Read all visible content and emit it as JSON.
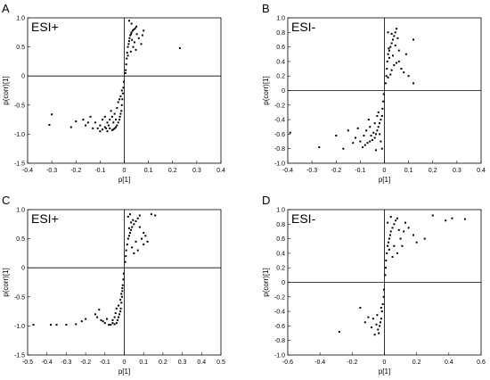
{
  "figure": {
    "panels": [
      {
        "letter": "A",
        "annotation": "ESI+",
        "xlabel": "p[1]",
        "ylabel": "p(corr)[1]"
      },
      {
        "letter": "B",
        "annotation": "ESI-",
        "xlabel": "p[1]",
        "ylabel": "p(corr)[1]"
      },
      {
        "letter": "C",
        "annotation": "ESI+",
        "xlabel": "p[1]",
        "ylabel": "p(corr)[1]"
      },
      {
        "letter": "D",
        "annotation": "ESI-",
        "xlabel": "p[1]",
        "ylabel": "p(corr)[1]"
      }
    ]
  },
  "chart_data": [
    {
      "type": "scatter",
      "panel": "A",
      "annotation": "ESI+",
      "xlabel": "p[1]",
      "ylabel": "p(corr)[1]",
      "xlim": [
        -0.4,
        0.4
      ],
      "ylim": [
        -1.5,
        1.0
      ],
      "xticks": [
        -0.4,
        -0.3,
        -0.2,
        -0.1,
        0,
        0.1,
        0.2,
        0.3,
        0.4
      ],
      "yticks": [
        -1.5,
        -1.0,
        -0.5,
        0,
        0.5,
        1.0
      ],
      "xtick_labels": [
        "-0.4",
        "-0.3",
        "-0.2",
        "-0.1",
        "0",
        "0.1",
        "0.2",
        "0.3",
        "0.4"
      ],
      "ytick_labels": [
        "-1.5",
        "-1.0",
        "-0.5",
        "0",
        "0.5",
        "1.0"
      ],
      "grid": false,
      "reference_lines": {
        "x": 0,
        "y": 0
      },
      "points": [
        [
          0.01,
          0.3
        ],
        [
          0.012,
          0.4
        ],
        [
          0.015,
          0.5
        ],
        [
          0.018,
          0.55
        ],
        [
          0.02,
          0.6
        ],
        [
          0.022,
          0.65
        ],
        [
          0.025,
          0.7
        ],
        [
          0.028,
          0.72
        ],
        [
          0.03,
          0.75
        ],
        [
          0.035,
          0.78
        ],
        [
          0.04,
          0.8
        ],
        [
          0.045,
          0.82
        ],
        [
          0.05,
          0.85
        ],
        [
          0.03,
          0.9
        ],
        [
          0.02,
          0.95
        ],
        [
          0.06,
          0.65
        ],
        [
          0.07,
          0.55
        ],
        [
          0.075,
          0.7
        ],
        [
          0.08,
          0.78
        ],
        [
          0.008,
          0.2
        ],
        [
          0.006,
          0.1
        ],
        [
          0.005,
          0.05
        ],
        [
          0.015,
          0.35
        ],
        [
          0.032,
          0.62
        ],
        [
          0.042,
          0.58
        ],
        [
          0.052,
          0.72
        ],
        [
          0.037,
          0.5
        ],
        [
          0.048,
          0.45
        ],
        [
          0.027,
          0.42
        ],
        [
          0.23,
          0.48
        ],
        [
          -0.002,
          -0.1
        ],
        [
          -0.004,
          -0.2
        ],
        [
          -0.006,
          -0.3
        ],
        [
          -0.008,
          -0.4
        ],
        [
          -0.01,
          -0.5
        ],
        [
          -0.012,
          -0.6
        ],
        [
          -0.015,
          -0.65
        ],
        [
          -0.018,
          -0.7
        ],
        [
          -0.02,
          -0.75
        ],
        [
          -0.025,
          -0.8
        ],
        [
          -0.03,
          -0.85
        ],
        [
          -0.035,
          -0.88
        ],
        [
          -0.04,
          -0.9
        ],
        [
          -0.045,
          -0.92
        ],
        [
          -0.05,
          -0.93
        ],
        [
          -0.06,
          -0.9
        ],
        [
          -0.07,
          -0.95
        ],
        [
          -0.08,
          -0.88
        ],
        [
          -0.09,
          -0.92
        ],
        [
          -0.1,
          -0.85
        ],
        [
          -0.12,
          -0.8
        ],
        [
          -0.13,
          -0.9
        ],
        [
          -0.15,
          -0.8
        ],
        [
          -0.17,
          -0.75
        ],
        [
          -0.2,
          -0.78
        ],
        [
          -0.22,
          -0.88
        ],
        [
          -0.3,
          -0.66
        ],
        [
          -0.31,
          -0.84
        ],
        [
          -0.05,
          -0.7
        ],
        [
          -0.06,
          -0.75
        ],
        [
          -0.04,
          -0.65
        ],
        [
          -0.03,
          -0.55
        ],
        [
          -0.025,
          -0.45
        ],
        [
          -0.02,
          -0.4
        ],
        [
          -0.015,
          -0.35
        ],
        [
          -0.01,
          -0.25
        ],
        [
          -0.07,
          -0.8
        ],
        [
          -0.08,
          -0.7
        ],
        [
          -0.09,
          -0.75
        ],
        [
          -0.11,
          -0.9
        ],
        [
          -0.14,
          -0.7
        ],
        [
          -0.16,
          -0.85
        ],
        [
          -0.1,
          -0.95
        ],
        [
          -0.055,
          -0.6
        ],
        [
          -0.035,
          -0.75
        ],
        [
          -0.045,
          -0.8
        ],
        [
          -0.065,
          -0.85
        ],
        [
          -0.075,
          -0.9
        ]
      ]
    },
    {
      "type": "scatter",
      "panel": "B",
      "annotation": "ESI-",
      "xlabel": "p[1]",
      "ylabel": "p(corr)[1]",
      "xlim": [
        -0.4,
        0.4
      ],
      "ylim": [
        -1.0,
        1.0
      ],
      "xticks": [
        -0.4,
        -0.3,
        -0.2,
        -0.1,
        0,
        0.1,
        0.2,
        0.3,
        0.4
      ],
      "yticks": [
        -1.0,
        -0.8,
        -0.6,
        -0.4,
        -0.2,
        0,
        0.2,
        0.4,
        0.6,
        0.8,
        1.0
      ],
      "xtick_labels": [
        "-0.4",
        "-0.3",
        "-0.2",
        "-0.1",
        "0",
        "0.1",
        "0.2",
        "0.3",
        "0.4"
      ],
      "ytick_labels": [
        "-1.0",
        "-0.8",
        "-0.6",
        "-0.4",
        "-0.2",
        "0",
        "0.2",
        "0.4",
        "0.6",
        "0.8",
        "1.0"
      ],
      "grid": false,
      "reference_lines": {
        "x": 0,
        "y": 0
      },
      "points": [
        [
          0.005,
          0.1
        ],
        [
          0.008,
          0.2
        ],
        [
          0.01,
          0.3
        ],
        [
          0.012,
          0.4
        ],
        [
          0.015,
          0.5
        ],
        [
          0.02,
          0.55
        ],
        [
          0.025,
          0.6
        ],
        [
          0.03,
          0.65
        ],
        [
          0.035,
          0.7
        ],
        [
          0.04,
          0.75
        ],
        [
          0.045,
          0.8
        ],
        [
          0.05,
          0.85
        ],
        [
          0.03,
          0.78
        ],
        [
          0.02,
          0.45
        ],
        [
          0.04,
          0.35
        ],
        [
          0.06,
          0.4
        ],
        [
          0.07,
          0.3
        ],
        [
          0.08,
          0.25
        ],
        [
          0.1,
          0.2
        ],
        [
          0.12,
          0.1
        ],
        [
          0.09,
          0.5
        ],
        [
          0.06,
          0.55
        ],
        [
          0.05,
          0.38
        ],
        [
          0.03,
          0.28
        ],
        [
          0.015,
          0.18
        ],
        [
          0.025,
          0.22
        ],
        [
          0.035,
          0.48
        ],
        [
          0.045,
          0.62
        ],
        [
          0.055,
          0.72
        ],
        [
          0.12,
          0.7
        ],
        [
          0.015,
          0.8
        ],
        [
          0.018,
          0.58
        ],
        [
          -0.003,
          -0.05
        ],
        [
          -0.005,
          -0.15
        ],
        [
          -0.008,
          -0.25
        ],
        [
          -0.01,
          -0.35
        ],
        [
          -0.015,
          -0.4
        ],
        [
          -0.02,
          -0.45
        ],
        [
          -0.025,
          -0.5
        ],
        [
          -0.03,
          -0.55
        ],
        [
          -0.035,
          -0.6
        ],
        [
          -0.04,
          -0.65
        ],
        [
          -0.05,
          -0.68
        ],
        [
          -0.06,
          -0.7
        ],
        [
          -0.07,
          -0.72
        ],
        [
          -0.08,
          -0.75
        ],
        [
          -0.09,
          -0.78
        ],
        [
          -0.1,
          -0.7
        ],
        [
          -0.12,
          -0.65
        ],
        [
          -0.15,
          -0.55
        ],
        [
          -0.17,
          -0.8
        ],
        [
          -0.2,
          -0.62
        ],
        [
          -0.27,
          -0.78
        ],
        [
          -0.39,
          -0.58
        ],
        [
          -0.06,
          -0.5
        ],
        [
          -0.04,
          -0.45
        ],
        [
          -0.03,
          -0.35
        ],
        [
          -0.025,
          -0.3
        ],
        [
          -0.045,
          -0.58
        ],
        [
          -0.055,
          -0.62
        ],
        [
          -0.065,
          -0.4
        ],
        [
          -0.075,
          -0.55
        ],
        [
          -0.085,
          -0.62
        ],
        [
          -0.11,
          -0.52
        ],
        [
          -0.13,
          -0.72
        ],
        [
          -0.02,
          -0.6
        ],
        [
          -0.015,
          -0.7
        ],
        [
          -0.01,
          -0.8
        ],
        [
          -0.035,
          -0.82
        ]
      ]
    },
    {
      "type": "scatter",
      "panel": "C",
      "annotation": "ESI+",
      "xlabel": "p[1]",
      "ylabel": "p(corr)[1]",
      "xlim": [
        -0.5,
        0.5
      ],
      "ylim": [
        -1.5,
        1.0
      ],
      "xticks": [
        -0.5,
        -0.4,
        -0.3,
        -0.2,
        -0.1,
        0,
        0.1,
        0.2,
        0.3,
        0.4,
        0.5
      ],
      "yticks": [
        -1.5,
        -1.0,
        -0.5,
        0,
        0.5,
        1.0
      ],
      "xtick_labels": [
        "-0.5",
        "-0.4",
        "-0.3",
        "-0.2",
        "-0.1",
        "0",
        "0.1",
        "0.2",
        "0.3",
        "0.4",
        "0.5"
      ],
      "ytick_labels": [
        "-1.5",
        "-1.0",
        "-0.5",
        "0",
        "0.5",
        "1.0"
      ],
      "grid": false,
      "reference_lines": {
        "x": 0,
        "y": 0
      },
      "points": [
        [
          0.005,
          0.1
        ],
        [
          0.008,
          0.2
        ],
        [
          0.01,
          0.3
        ],
        [
          0.015,
          0.4
        ],
        [
          0.02,
          0.5
        ],
        [
          0.025,
          0.55
        ],
        [
          0.03,
          0.6
        ],
        [
          0.035,
          0.65
        ],
        [
          0.04,
          0.7
        ],
        [
          0.05,
          0.75
        ],
        [
          0.06,
          0.8
        ],
        [
          0.07,
          0.85
        ],
        [
          0.08,
          0.9
        ],
        [
          0.03,
          0.92
        ],
        [
          0.02,
          0.88
        ],
        [
          0.09,
          0.5
        ],
        [
          0.1,
          0.4
        ],
        [
          0.12,
          0.45
        ],
        [
          0.1,
          0.6
        ],
        [
          0.14,
          0.92
        ],
        [
          0.16,
          0.9
        ],
        [
          0.04,
          0.35
        ],
        [
          0.06,
          0.45
        ],
        [
          0.07,
          0.3
        ],
        [
          0.05,
          0.25
        ],
        [
          0.08,
          0.7
        ],
        [
          0.11,
          0.55
        ],
        [
          0.045,
          0.82
        ],
        [
          0.035,
          0.78
        ],
        [
          0.025,
          0.68
        ],
        [
          -0.003,
          -0.1
        ],
        [
          -0.005,
          -0.2
        ],
        [
          -0.008,
          -0.3
        ],
        [
          -0.01,
          -0.4
        ],
        [
          -0.012,
          -0.5
        ],
        [
          -0.015,
          -0.6
        ],
        [
          -0.018,
          -0.7
        ],
        [
          -0.02,
          -0.75
        ],
        [
          -0.025,
          -0.8
        ],
        [
          -0.03,
          -0.85
        ],
        [
          -0.035,
          -0.9
        ],
        [
          -0.04,
          -0.95
        ],
        [
          -0.05,
          -0.97
        ],
        [
          -0.06,
          -0.95
        ],
        [
          -0.07,
          -0.98
        ],
        [
          -0.08,
          -0.98
        ],
        [
          -0.1,
          -0.95
        ],
        [
          -0.12,
          -0.9
        ],
        [
          -0.13,
          -0.72
        ],
        [
          -0.15,
          -0.8
        ],
        [
          -0.2,
          -0.88
        ],
        [
          -0.22,
          -0.92
        ],
        [
          -0.25,
          -0.97
        ],
        [
          -0.3,
          -0.98
        ],
        [
          -0.35,
          -0.98
        ],
        [
          -0.38,
          -0.98
        ],
        [
          -0.47,
          -0.98
        ],
        [
          -0.02,
          -0.55
        ],
        [
          -0.015,
          -0.45
        ],
        [
          -0.01,
          -0.35
        ],
        [
          -0.03,
          -0.65
        ],
        [
          -0.04,
          -0.7
        ],
        [
          -0.05,
          -0.85
        ],
        [
          -0.06,
          -0.9
        ],
        [
          -0.09,
          -0.88
        ],
        [
          -0.11,
          -0.92
        ],
        [
          -0.14,
          -0.85
        ],
        [
          -0.045,
          -0.78
        ]
      ]
    },
    {
      "type": "scatter",
      "panel": "D",
      "annotation": "ESI-",
      "xlabel": "p[1]",
      "ylabel": "p(corr)[1]",
      "xlim": [
        -0.6,
        0.6
      ],
      "ylim": [
        -1.0,
        1.0
      ],
      "xticks": [
        -0.6,
        -0.4,
        -0.2,
        0,
        0.2,
        0.4,
        0.6
      ],
      "yticks": [
        -1.0,
        -0.8,
        -0.6,
        -0.4,
        -0.2,
        0,
        0.2,
        0.4,
        0.6,
        0.8,
        1.0
      ],
      "xtick_labels": [
        "-0.6",
        "-0.4",
        "-0.2",
        "0",
        "0.2",
        "0.4",
        "0.6"
      ],
      "ytick_labels": [
        "-1.0",
        "-0.8",
        "-0.6",
        "-0.4",
        "-0.2",
        "0",
        "0.2",
        "0.4",
        "0.6",
        "0.8",
        "1.0"
      ],
      "grid": false,
      "reference_lines": {
        "x": 0,
        "y": 0
      },
      "points": [
        [
          0.005,
          0.1
        ],
        [
          0.008,
          0.2
        ],
        [
          0.01,
          0.3
        ],
        [
          0.015,
          0.4
        ],
        [
          0.02,
          0.5
        ],
        [
          0.025,
          0.55
        ],
        [
          0.03,
          0.6
        ],
        [
          0.035,
          0.65
        ],
        [
          0.04,
          0.7
        ],
        [
          0.05,
          0.75
        ],
        [
          0.06,
          0.8
        ],
        [
          0.07,
          0.85
        ],
        [
          0.08,
          0.88
        ],
        [
          0.04,
          0.9
        ],
        [
          0.02,
          0.82
        ],
        [
          0.1,
          0.6
        ],
        [
          0.12,
          0.7
        ],
        [
          0.15,
          0.75
        ],
        [
          0.18,
          0.65
        ],
        [
          0.2,
          0.55
        ],
        [
          0.25,
          0.6
        ],
        [
          0.3,
          0.92
        ],
        [
          0.38,
          0.85
        ],
        [
          0.42,
          0.88
        ],
        [
          0.5,
          0.87
        ],
        [
          0.06,
          0.5
        ],
        [
          0.08,
          0.4
        ],
        [
          0.05,
          0.35
        ],
        [
          0.03,
          0.45
        ],
        [
          0.09,
          0.72
        ],
        [
          0.13,
          0.82
        ],
        [
          0.11,
          0.5
        ],
        [
          -0.003,
          -0.1
        ],
        [
          -0.005,
          -0.2
        ],
        [
          -0.01,
          -0.3
        ],
        [
          -0.015,
          -0.4
        ],
        [
          -0.02,
          -0.5
        ],
        [
          -0.025,
          -0.55
        ],
        [
          -0.03,
          -0.6
        ],
        [
          -0.04,
          -0.65
        ],
        [
          -0.05,
          -0.58
        ],
        [
          -0.06,
          -0.72
        ],
        [
          -0.08,
          -0.62
        ],
        [
          -0.1,
          -0.48
        ],
        [
          -0.12,
          -0.55
        ],
        [
          -0.15,
          -0.35
        ],
        [
          -0.28,
          -0.68
        ],
        [
          -0.035,
          -0.7
        ],
        [
          -0.045,
          -0.45
        ],
        [
          -0.02,
          -0.35
        ],
        [
          -0.07,
          -0.5
        ]
      ]
    }
  ]
}
